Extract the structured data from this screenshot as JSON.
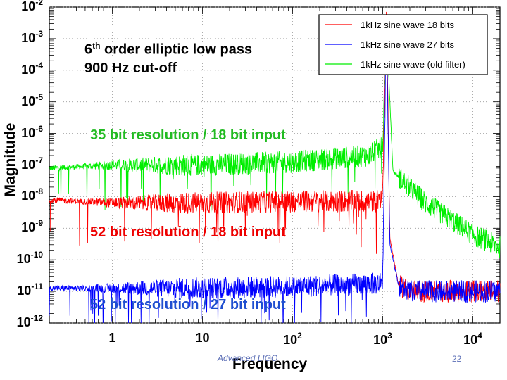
{
  "chart_data": {
    "type": "line",
    "title_line1_base": "6",
    "title_line1_sup": "th",
    "title_line1_rest": " order elliptic low pass",
    "title_line2": "900 Hz cut-off",
    "xlabel": "Frequency",
    "ylabel": "Magnitude",
    "xscale": "log",
    "yscale": "log",
    "xlim": [
      0.2,
      20000
    ],
    "ylim": [
      1e-12,
      0.01
    ],
    "x_ticks": [
      {
        "base": "1",
        "exp": ""
      },
      {
        "base": "10",
        "exp": ""
      },
      {
        "base": "10",
        "exp": "2"
      },
      {
        "base": "10",
        "exp": "3"
      },
      {
        "base": "10",
        "exp": "4"
      }
    ],
    "y_ticks": [
      {
        "base": "10",
        "exp": "-2"
      },
      {
        "base": "10",
        "exp": "-3"
      },
      {
        "base": "10",
        "exp": "-4"
      },
      {
        "base": "10",
        "exp": "-5"
      },
      {
        "base": "10",
        "exp": "-6"
      },
      {
        "base": "10",
        "exp": "-7"
      },
      {
        "base": "10",
        "exp": "-8"
      },
      {
        "base": "10",
        "exp": "-9"
      },
      {
        "base": "10",
        "exp": "-10"
      },
      {
        "base": "10",
        "exp": "-11"
      },
      {
        "base": "10",
        "exp": "-12"
      }
    ],
    "legend_position": "top-right",
    "series": [
      {
        "name": "1kHz sine wave 18 bits",
        "color": "#ff0000",
        "annotation": "52 bit resolution / 18 bit input",
        "floor_log10": -8.2,
        "points": [
          [
            0.2,
            -8.1
          ],
          [
            1,
            -8.2
          ],
          [
            10,
            -8.2
          ],
          [
            100,
            -8.15
          ],
          [
            900,
            -8.15
          ],
          [
            1000,
            -7.9
          ],
          [
            1100,
            -2.0
          ],
          [
            1200,
            -9.3
          ],
          [
            1500,
            -10.8
          ],
          [
            2000,
            -11.0
          ],
          [
            20000,
            -11.0
          ]
        ]
      },
      {
        "name": "1kHz sine wave 27 bits",
        "color": "#0000ff",
        "annotation": "52 bit resolution / 27 bit input",
        "floor_log10": -10.9,
        "points": [
          [
            0.2,
            -10.9
          ],
          [
            1,
            -10.9
          ],
          [
            10,
            -10.9
          ],
          [
            100,
            -10.85
          ],
          [
            900,
            -10.75
          ],
          [
            1000,
            -10.6
          ],
          [
            1100,
            -2.2
          ],
          [
            1200,
            -9.5
          ],
          [
            1500,
            -10.8
          ],
          [
            2000,
            -11.0
          ],
          [
            20000,
            -11.0
          ]
        ]
      },
      {
        "name": "1kHz sine wave (old filter)",
        "color": "#00ee00",
        "annotation": "35 bit resolution / 18 bit input",
        "floor_log10": -7.0,
        "points": [
          [
            0.2,
            -7.1
          ],
          [
            1,
            -7.0
          ],
          [
            10,
            -7.0
          ],
          [
            100,
            -6.9
          ],
          [
            700,
            -6.7
          ],
          [
            1000,
            -6.4
          ],
          [
            1100,
            -2.5
          ],
          [
            1300,
            -7.2
          ],
          [
            3000,
            -8.2
          ],
          [
            10000,
            -9.2
          ],
          [
            20000,
            -9.6
          ]
        ]
      }
    ]
  },
  "footer": {
    "text": "Advanced LIGO",
    "page_number": "22"
  }
}
